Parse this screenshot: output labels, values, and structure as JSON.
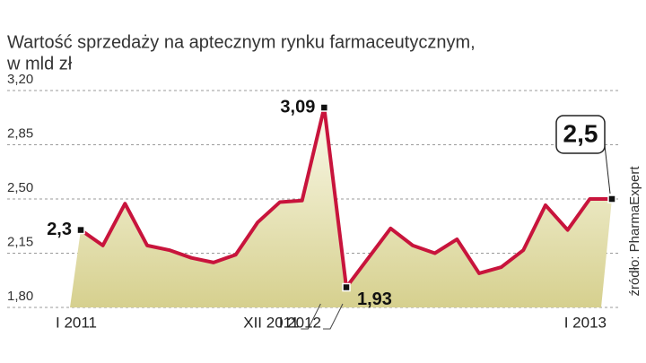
{
  "chart_data": {
    "type": "line",
    "title": "Wartość sprzedaży na aptecznym rynku farmaceutycznym,",
    "subtitle": "w mld zł",
    "source": "źródło: PharmaExpert",
    "categories": [
      "I 2011",
      null,
      null,
      null,
      null,
      null,
      null,
      null,
      null,
      null,
      null,
      "XII 2011",
      "I 2012",
      null,
      null,
      null,
      null,
      null,
      null,
      null,
      null,
      null,
      null,
      null,
      "I 2013"
    ],
    "series": [
      {
        "color": "#c8143c",
        "values": [
          2.3,
          2.2,
          2.47,
          2.2,
          2.17,
          2.12,
          2.09,
          2.14,
          2.35,
          2.48,
          2.49,
          3.09,
          1.93,
          2.12,
          2.31,
          2.2,
          2.15,
          2.24,
          2.02,
          2.06,
          2.17,
          2.46,
          2.3,
          2.5,
          2.5
        ],
        "value_labels": [
          "2,3",
          null,
          null,
          null,
          null,
          null,
          null,
          null,
          null,
          null,
          null,
          "3,09",
          "1,93",
          null,
          null,
          null,
          null,
          null,
          null,
          null,
          null,
          null,
          null,
          null,
          "2,5"
        ]
      }
    ],
    "ylim": [
      1.8,
      3.2
    ],
    "yticks": [
      {
        "value": 1.8,
        "label": "1,80"
      },
      {
        "value": 2.15,
        "label": "2,15"
      },
      {
        "value": 2.5,
        "label": "2,50"
      },
      {
        "value": 2.85,
        "label": "2,85"
      },
      {
        "value": 3.2,
        "label": "3,20"
      }
    ],
    "grid": true,
    "area_color": "#d6d08e"
  }
}
